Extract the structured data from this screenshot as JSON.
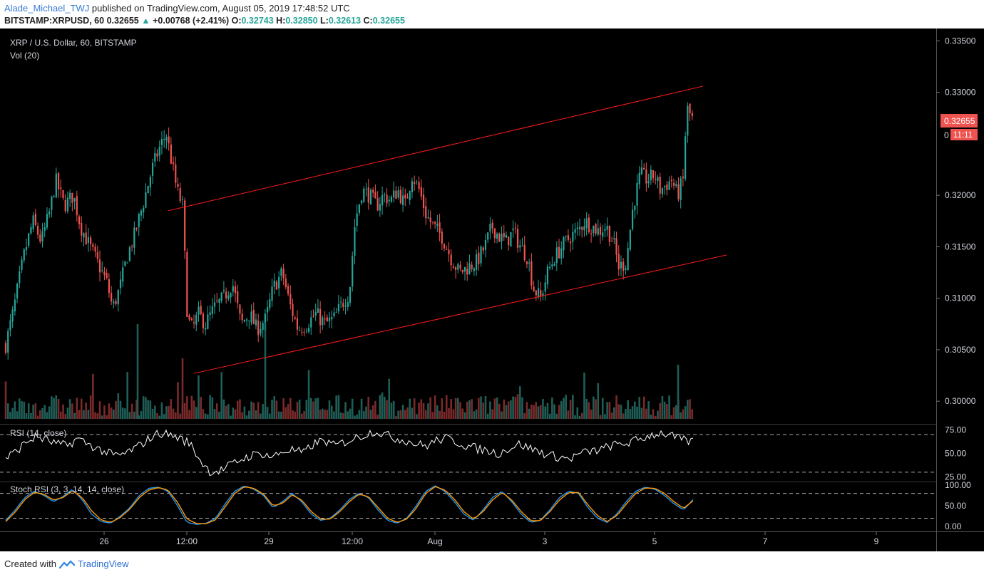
{
  "header": {
    "author": "Alade_Michael_TWJ",
    "published_text": "published on TradingView.com, August 05, 2019 17:48:52 UTC",
    "symbol": "BITSTAMP:XRPUSD, 60",
    "last": "0.32655",
    "change": "+0.00768 (+2.41%)",
    "o_label": "O:",
    "o_value": "0.32743",
    "h_label": "H:",
    "h_value": "0.32850",
    "l_label": "L:",
    "l_value": "0.32613",
    "c_label": "C:",
    "c_value": "0.32655"
  },
  "legend": {
    "title": "XRP / U.S. Dollar, 60, BITSTAMP",
    "vol": "Vol (20)",
    "rsi": "RSI (14, close)",
    "stoch": "Stoch RSI (3, 3, 14, 14, close)"
  },
  "price_tag": {
    "value": "0.32655",
    "countdown": "11:11",
    "partial": "0"
  },
  "footer": {
    "created_with": "Created with",
    "brand": "TradingView"
  },
  "colors": {
    "up": "#26a69a",
    "down": "#ef5350",
    "channel": "#ff1a1a",
    "rsi_line": "#ffffff",
    "stoch_k": "#2196f3",
    "stoch_d": "#ff9800",
    "price_tag": "#ef5350"
  },
  "chart_data": [
    {
      "type": "candlestick",
      "title": "XRP / U.S. Dollar, 60, BITSTAMP",
      "x_ticks": [
        "26",
        "12:00",
        "29",
        "12:00",
        "Aug",
        "3",
        "5",
        "7",
        "9"
      ],
      "y_ticks": [
        "0.33500",
        "0.33000",
        "0.32000",
        "0.31500",
        "0.31000",
        "0.30500",
        "0.30000"
      ],
      "ylim": [
        0.2978,
        0.3362
      ],
      "close_path": [
        [
          0,
          0.3055
        ],
        [
          10,
          0.3085
        ],
        [
          25,
          0.314
        ],
        [
          38,
          0.3175
        ],
        [
          50,
          0.3155
        ],
        [
          62,
          0.3185
        ],
        [
          70,
          0.3215
        ],
        [
          82,
          0.319
        ],
        [
          95,
          0.32
        ],
        [
          105,
          0.317
        ],
        [
          118,
          0.315
        ],
        [
          132,
          0.313
        ],
        [
          142,
          0.3115
        ],
        [
          150,
          0.309
        ],
        [
          160,
          0.311
        ],
        [
          170,
          0.314
        ],
        [
          180,
          0.316
        ],
        [
          192,
          0.319
        ],
        [
          205,
          0.3225
        ],
        [
          215,
          0.3245
        ],
        [
          225,
          0.326
        ],
        [
          232,
          0.3235
        ],
        [
          240,
          0.3205
        ],
        [
          248,
          0.319
        ],
        [
          255,
          0.308
        ],
        [
          262,
          0.307
        ],
        [
          270,
          0.3085
        ],
        [
          280,
          0.3075
        ],
        [
          292,
          0.309
        ],
        [
          305,
          0.31
        ],
        [
          318,
          0.3115
        ],
        [
          330,
          0.3075
        ],
        [
          342,
          0.3085
        ],
        [
          352,
          0.307
        ],
        [
          365,
          0.308
        ],
        [
          375,
          0.311
        ],
        [
          388,
          0.3125
        ],
        [
          398,
          0.3095
        ],
        [
          410,
          0.307
        ],
        [
          422,
          0.3075
        ],
        [
          435,
          0.3085
        ],
        [
          448,
          0.3075
        ],
        [
          460,
          0.308
        ],
        [
          472,
          0.3095
        ],
        [
          482,
          0.3105
        ],
        [
          490,
          0.3175
        ],
        [
          500,
          0.3205
        ],
        [
          510,
          0.32
        ],
        [
          520,
          0.319
        ],
        [
          530,
          0.32
        ],
        [
          540,
          0.3195
        ],
        [
          550,
          0.3205
        ],
        [
          560,
          0.319
        ],
        [
          570,
          0.322
        ],
        [
          580,
          0.3205
        ],
        [
          590,
          0.318
        ],
        [
          600,
          0.317
        ],
        [
          612,
          0.316
        ],
        [
          624,
          0.314
        ],
        [
          636,
          0.3125
        ],
        [
          648,
          0.313
        ],
        [
          660,
          0.3135
        ],
        [
          672,
          0.315
        ],
        [
          682,
          0.317
        ],
        [
          692,
          0.316
        ],
        [
          702,
          0.3155
        ],
        [
          712,
          0.3165
        ],
        [
          722,
          0.315
        ],
        [
          732,
          0.314
        ],
        [
          740,
          0.311
        ],
        [
          750,
          0.31
        ],
        [
          760,
          0.3125
        ],
        [
          770,
          0.314
        ],
        [
          780,
          0.315
        ],
        [
          792,
          0.316
        ],
        [
          802,
          0.3165
        ],
        [
          812,
          0.3175
        ],
        [
          822,
          0.317
        ],
        [
          832,
          0.3165
        ],
        [
          842,
          0.317
        ],
        [
          852,
          0.3155
        ],
        [
          860,
          0.313
        ],
        [
          870,
          0.3135
        ],
        [
          880,
          0.319
        ],
        [
          890,
          0.322
        ],
        [
          900,
          0.3215
        ],
        [
          910,
          0.322
        ],
        [
          918,
          0.3205
        ],
        [
          926,
          0.321
        ],
        [
          934,
          0.3215
        ],
        [
          942,
          0.32
        ],
        [
          950,
          0.3215
        ],
        [
          955,
          0.3285
        ],
        [
          962,
          0.3275
        ],
        [
          970,
          0.3266
        ]
      ],
      "channel_upper": [
        [
          0.3185,
          0.3306
        ]
      ],
      "channel_lower": [
        [
          0.3027,
          0.3142
        ]
      ],
      "last_price": 0.32655
    },
    {
      "type": "line",
      "title": "RSI (14, close)",
      "y_ticks": [
        "75.00",
        "50.00",
        "25.00"
      ],
      "ylim": [
        20,
        80
      ],
      "bands": [
        30,
        70
      ],
      "values": [
        45,
        52,
        62,
        68,
        64,
        60,
        58,
        66,
        60,
        55,
        50,
        47,
        52,
        58,
        66,
        72,
        70,
        66,
        60,
        42,
        30,
        32,
        38,
        44,
        48,
        50,
        46,
        52,
        54,
        50,
        60,
        64,
        58,
        62,
        66,
        70,
        74,
        70,
        66,
        64,
        60,
        58,
        64,
        66,
        62,
        58,
        55,
        53,
        50,
        55,
        60,
        56,
        52,
        48,
        46,
        44,
        50,
        52,
        54,
        58,
        60,
        62,
        66,
        70,
        72,
        68,
        64,
        62
      ]
    },
    {
      "type": "line",
      "title": "Stoch RSI (3, 3, 14, 14, close)",
      "y_ticks": [
        "100.00",
        "50.00",
        "0.00"
      ],
      "ylim": [
        -10,
        105
      ],
      "bands": [
        20,
        80
      ],
      "series": [
        {
          "values": [
            15,
            40,
            70,
            85,
            75,
            60,
            72,
            90,
            65,
            30,
            12,
            8,
            25,
            45,
            75,
            92,
            95,
            85,
            50,
            10,
            5,
            8,
            20,
            55,
            85,
            98,
            90,
            75,
            45,
            60,
            80,
            60,
            30,
            15,
            20,
            40,
            65,
            80,
            70,
            40,
            15,
            8,
            20,
            50,
            85,
            98,
            85,
            60,
            30,
            15,
            40,
            70,
            85,
            60,
            30,
            10,
            15,
            40,
            70,
            85,
            80,
            45,
            20,
            10,
            30,
            60,
            85,
            95,
            90,
            75,
            55,
            40,
            65
          ]
        },
        {
          "values": [
            12,
            35,
            65,
            82,
            78,
            64,
            70,
            86,
            70,
            38,
            16,
            10,
            22,
            42,
            70,
            88,
            94,
            88,
            58,
            18,
            7,
            7,
            16,
            48,
            80,
            96,
            92,
            78,
            50,
            56,
            76,
            64,
            36,
            18,
            18,
            36,
            60,
            78,
            72,
            46,
            20,
            10,
            18,
            44,
            80,
            96,
            88,
            66,
            36,
            18,
            36,
            64,
            82,
            64,
            36,
            14,
            14,
            36,
            64,
            82,
            82,
            52,
            26,
            12,
            26,
            54,
            80,
            93,
            92,
            80,
            60,
            44,
            62
          ]
        }
      ]
    }
  ]
}
